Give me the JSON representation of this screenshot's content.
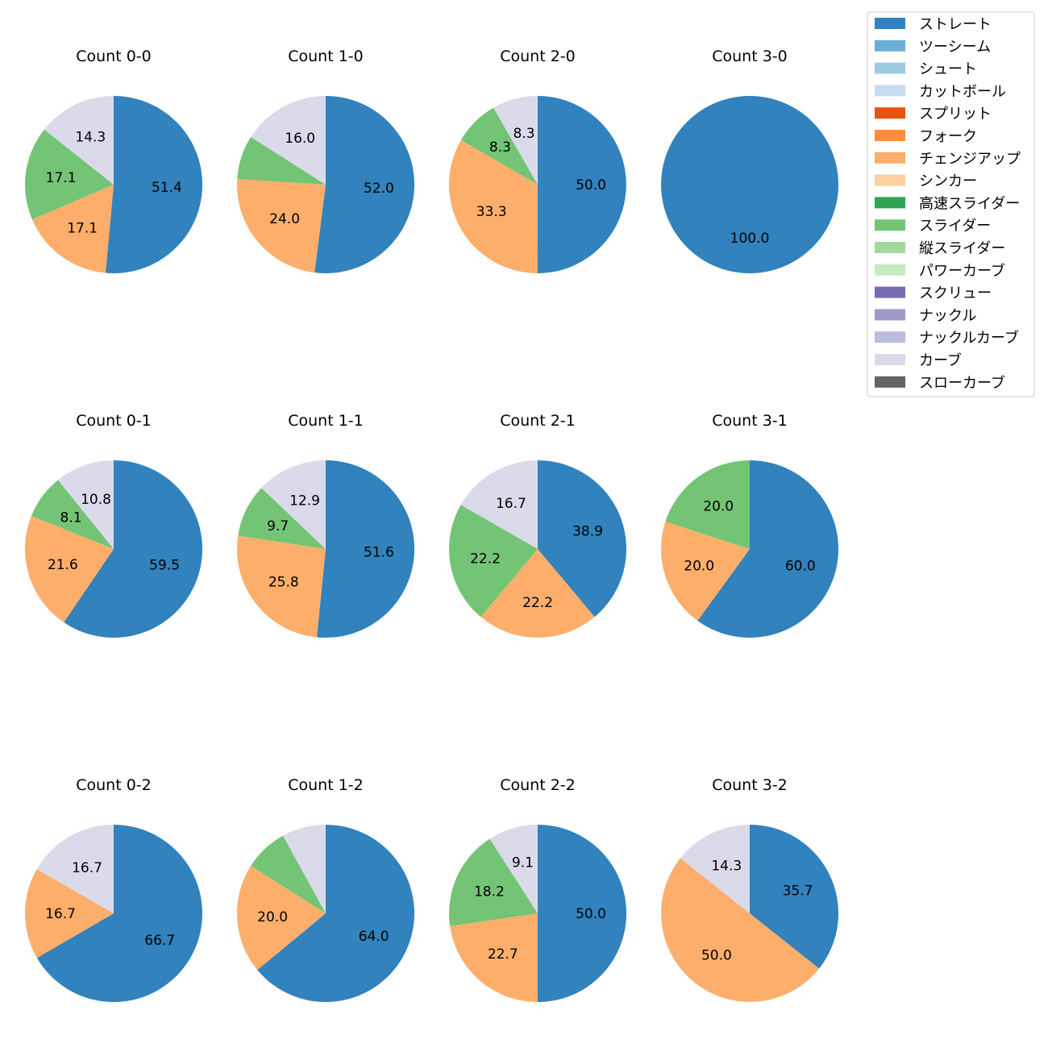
{
  "legend": [
    {
      "label": "ストレート",
      "color": "#3182bd"
    },
    {
      "label": "ツーシーム",
      "color": "#6baed6"
    },
    {
      "label": "シュート",
      "color": "#9ecae1"
    },
    {
      "label": "カットボール",
      "color": "#c6dbef"
    },
    {
      "label": "スプリット",
      "color": "#e6550d"
    },
    {
      "label": "フォーク",
      "color": "#fd8d3c"
    },
    {
      "label": "チェンジアップ",
      "color": "#fdae6b"
    },
    {
      "label": "シンカー",
      "color": "#fdd0a2"
    },
    {
      "label": "高速スライダー",
      "color": "#31a354"
    },
    {
      "label": "スライダー",
      "color": "#74c476"
    },
    {
      "label": "縦スライダー",
      "color": "#a1d99b"
    },
    {
      "label": "パワーカーブ",
      "color": "#c7e9c0"
    },
    {
      "label": "スクリュー",
      "color": "#756bb1"
    },
    {
      "label": "ナックル",
      "color": "#9e9ac8"
    },
    {
      "label": "ナックルカーブ",
      "color": "#bcbddc"
    },
    {
      "label": "カーブ",
      "color": "#dadaeb"
    },
    {
      "label": "スローカーブ",
      "color": "#636363"
    }
  ],
  "chart_data": [
    {
      "type": "pie",
      "title": "Count 0-0",
      "slices": [
        {
          "pitch": "ストレート",
          "value": 51.4,
          "label": "51.4"
        },
        {
          "pitch": "チェンジアップ",
          "value": 17.1,
          "label": "17.1"
        },
        {
          "pitch": "スライダー",
          "value": 17.1,
          "label": "17.1"
        },
        {
          "pitch": "カーブ",
          "value": 14.3,
          "label": "14.3"
        }
      ]
    },
    {
      "type": "pie",
      "title": "Count 1-0",
      "slices": [
        {
          "pitch": "ストレート",
          "value": 52.0,
          "label": "52.0"
        },
        {
          "pitch": "チェンジアップ",
          "value": 24.0,
          "label": "24.0"
        },
        {
          "pitch": "スライダー",
          "value": 8.0,
          "label": ""
        },
        {
          "pitch": "カーブ",
          "value": 16.0,
          "label": "16.0"
        }
      ]
    },
    {
      "type": "pie",
      "title": "Count 2-0",
      "slices": [
        {
          "pitch": "ストレート",
          "value": 50.0,
          "label": "50.0"
        },
        {
          "pitch": "チェンジアップ",
          "value": 33.3,
          "label": "33.3"
        },
        {
          "pitch": "スライダー",
          "value": 8.3,
          "label": "8.3"
        },
        {
          "pitch": "カーブ",
          "value": 8.3,
          "label": "8.3"
        }
      ]
    },
    {
      "type": "pie",
      "title": "Count 3-0",
      "slices": [
        {
          "pitch": "ストレート",
          "value": 100.0,
          "label": "100.0"
        }
      ]
    },
    {
      "type": "pie",
      "title": "Count 0-1",
      "slices": [
        {
          "pitch": "ストレート",
          "value": 59.5,
          "label": "59.5"
        },
        {
          "pitch": "チェンジアップ",
          "value": 21.6,
          "label": "21.6"
        },
        {
          "pitch": "スライダー",
          "value": 8.1,
          "label": "8.1"
        },
        {
          "pitch": "カーブ",
          "value": 10.8,
          "label": "10.8"
        }
      ]
    },
    {
      "type": "pie",
      "title": "Count 1-1",
      "slices": [
        {
          "pitch": "ストレート",
          "value": 51.6,
          "label": "51.6"
        },
        {
          "pitch": "チェンジアップ",
          "value": 25.8,
          "label": "25.8"
        },
        {
          "pitch": "スライダー",
          "value": 9.7,
          "label": "9.7"
        },
        {
          "pitch": "カーブ",
          "value": 12.9,
          "label": "12.9"
        }
      ]
    },
    {
      "type": "pie",
      "title": "Count 2-1",
      "slices": [
        {
          "pitch": "ストレート",
          "value": 38.9,
          "label": "38.9"
        },
        {
          "pitch": "チェンジアップ",
          "value": 22.2,
          "label": "22.2"
        },
        {
          "pitch": "スライダー",
          "value": 22.2,
          "label": "22.2"
        },
        {
          "pitch": "カーブ",
          "value": 16.7,
          "label": "16.7"
        }
      ]
    },
    {
      "type": "pie",
      "title": "Count 3-1",
      "slices": [
        {
          "pitch": "ストレート",
          "value": 60.0,
          "label": "60.0"
        },
        {
          "pitch": "チェンジアップ",
          "value": 20.0,
          "label": "20.0"
        },
        {
          "pitch": "スライダー",
          "value": 20.0,
          "label": "20.0"
        }
      ]
    },
    {
      "type": "pie",
      "title": "Count 0-2",
      "slices": [
        {
          "pitch": "ストレート",
          "value": 66.7,
          "label": "66.7"
        },
        {
          "pitch": "チェンジアップ",
          "value": 16.7,
          "label": "16.7"
        },
        {
          "pitch": "カーブ",
          "value": 16.7,
          "label": "16.7"
        }
      ]
    },
    {
      "type": "pie",
      "title": "Count 1-2",
      "slices": [
        {
          "pitch": "ストレート",
          "value": 64.0,
          "label": "64.0"
        },
        {
          "pitch": "チェンジアップ",
          "value": 20.0,
          "label": "20.0"
        },
        {
          "pitch": "スライダー",
          "value": 8.0,
          "label": ""
        },
        {
          "pitch": "カーブ",
          "value": 8.0,
          "label": ""
        }
      ]
    },
    {
      "type": "pie",
      "title": "Count 2-2",
      "slices": [
        {
          "pitch": "ストレート",
          "value": 50.0,
          "label": "50.0"
        },
        {
          "pitch": "チェンジアップ",
          "value": 22.7,
          "label": "22.7"
        },
        {
          "pitch": "スライダー",
          "value": 18.2,
          "label": "18.2"
        },
        {
          "pitch": "カーブ",
          "value": 9.1,
          "label": "9.1"
        }
      ]
    },
    {
      "type": "pie",
      "title": "Count 3-2",
      "slices": [
        {
          "pitch": "ストレート",
          "value": 35.7,
          "label": "35.7"
        },
        {
          "pitch": "チェンジアップ",
          "value": 50.0,
          "label": "50.0"
        },
        {
          "pitch": "カーブ",
          "value": 14.3,
          "label": "14.3"
        }
      ]
    }
  ]
}
